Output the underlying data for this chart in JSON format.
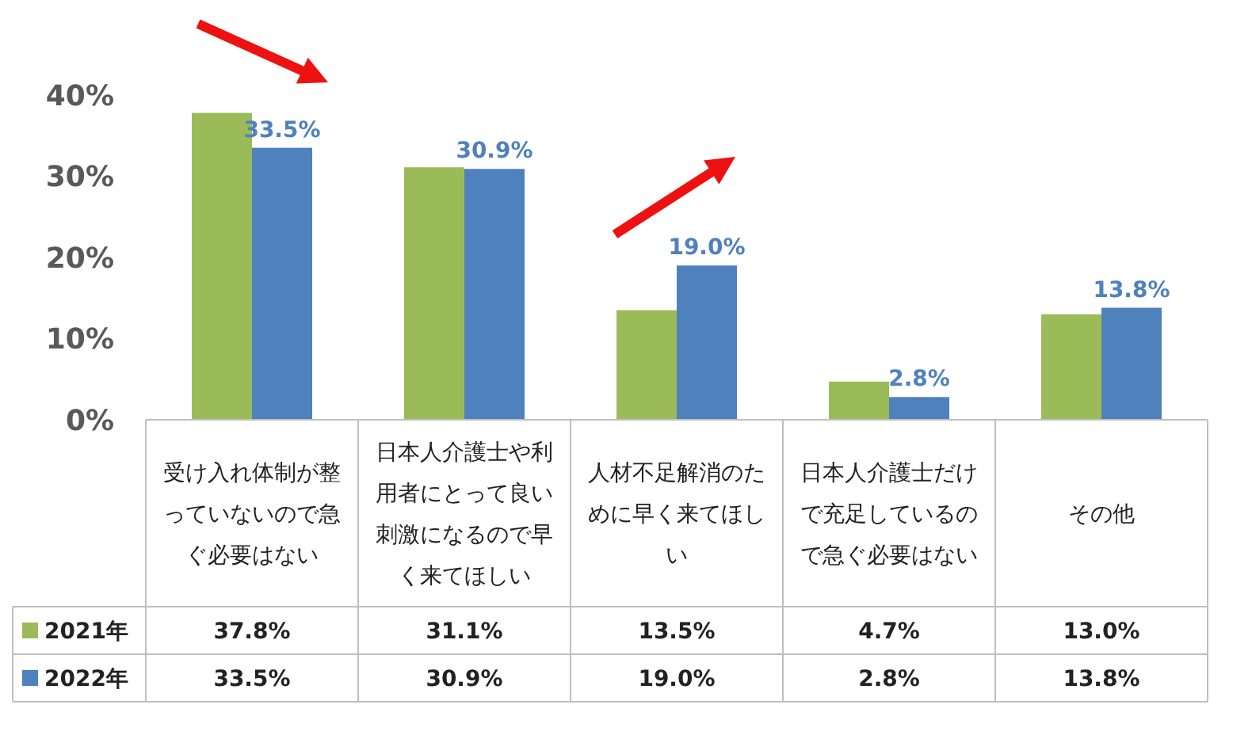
{
  "chart_data": {
    "type": "bar",
    "categories": [
      "受け入れ体制が整っていないので急ぐ必要はない",
      "日本人介護士や利用者にとって良い刺激になるので早く来てほしい",
      "人材不足解消のために早く来てほしい",
      "日本人介護士だけで充足しているので急ぐ必要はない",
      "その他"
    ],
    "series": [
      {
        "name": "2021年",
        "color": "#9bbb59",
        "values": [
          37.8,
          31.1,
          13.5,
          4.7,
          13.0
        ],
        "value_labels": [
          "37.8%",
          "31.1%",
          "13.5%",
          "4.7%",
          "13.0%"
        ]
      },
      {
        "name": "2022年",
        "color": "#4f81bd",
        "values": [
          33.5,
          30.9,
          19.0,
          2.8,
          13.8
        ],
        "value_labels": [
          "33.5%",
          "30.9%",
          "19.0%",
          "2.8%",
          "13.8%"
        ]
      }
    ],
    "ylim": [
      0,
      40
    ],
    "yticks": [
      {
        "value": 0,
        "label": "0%"
      },
      {
        "value": 10,
        "label": "10%"
      },
      {
        "value": 20,
        "label": "20%"
      },
      {
        "value": 30,
        "label": "30%"
      },
      {
        "value": 40,
        "label": "40%"
      }
    ],
    "legend": "bottom left",
    "grid": false
  }
}
